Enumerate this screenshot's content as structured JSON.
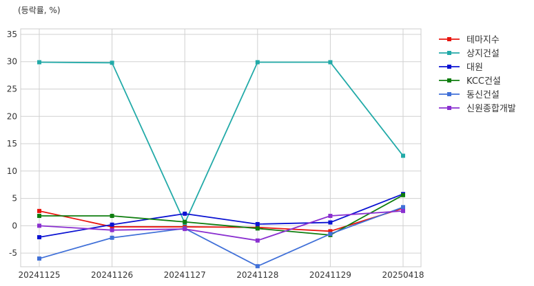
{
  "chart_data": {
    "type": "line",
    "unit_label": "(등락률, %)",
    "categories": [
      "20241125",
      "20241126",
      "20241127",
      "20241128",
      "20241129",
      "20250418"
    ],
    "ylim": [
      -7.5,
      36
    ],
    "yticks": [
      -5,
      0,
      5,
      10,
      15,
      20,
      25,
      30,
      35
    ],
    "grid": true,
    "legend_position": "right",
    "series": [
      {
        "name": "테마지수",
        "color": "#e8150e",
        "values": [
          2.7,
          -0.2,
          -0.2,
          -0.3,
          -1.0,
          3.2
        ]
      },
      {
        "name": "상지건설",
        "color": "#22aaa8",
        "values": [
          29.9,
          29.8,
          0.5,
          29.9,
          29.9,
          12.8
        ]
      },
      {
        "name": "대원",
        "color": "#0a12d2",
        "values": [
          -2.1,
          0.2,
          2.2,
          0.3,
          0.6,
          5.8
        ]
      },
      {
        "name": "KCC건설",
        "color": "#0e7d0e",
        "values": [
          1.8,
          1.8,
          0.7,
          -0.5,
          -1.7,
          5.6
        ]
      },
      {
        "name": "동신건설",
        "color": "#4070d8",
        "values": [
          -6.0,
          -2.2,
          -0.5,
          -7.4,
          -1.5,
          3.4
        ]
      },
      {
        "name": "신원종합개발",
        "color": "#8a2fd0",
        "values": [
          0.0,
          -0.8,
          -0.6,
          -2.7,
          1.8,
          2.7
        ]
      }
    ]
  }
}
